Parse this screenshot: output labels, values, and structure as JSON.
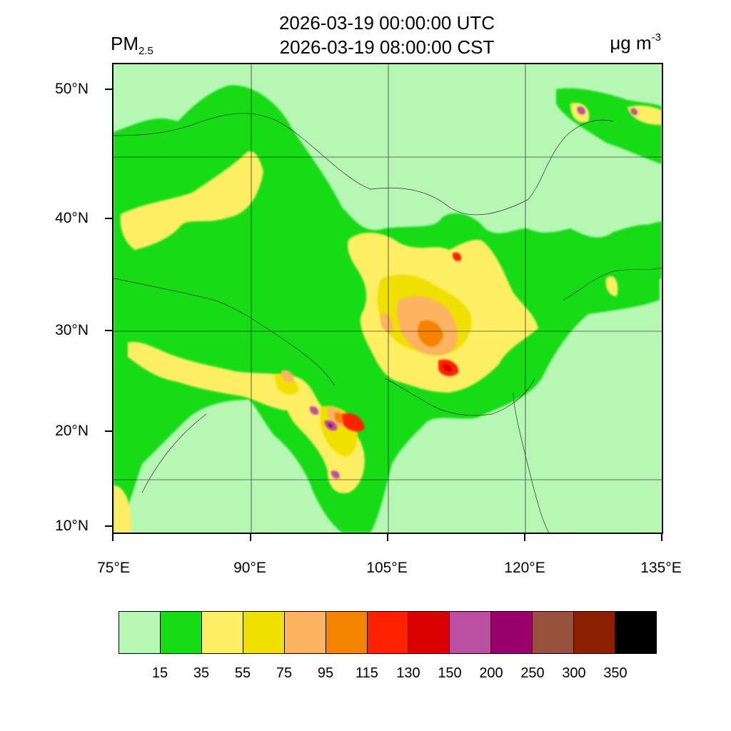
{
  "title": {
    "line1": "2026-03-19 00:00:00 UTC",
    "line2": "2026-03-19 08:00:00 CST"
  },
  "variable": {
    "base": "PM",
    "sub": "2.5"
  },
  "units": {
    "base": "μg m",
    "sup": "-3"
  },
  "axes": {
    "lat_labels": [
      "50°N",
      "40°N",
      "30°N",
      "20°N",
      "10°N"
    ],
    "lon_labels": [
      "75°E",
      "90°E",
      "105°E",
      "120°E",
      "135°E"
    ]
  },
  "legend": {
    "colors": [
      "#b6f7b4",
      "#16dc16",
      "#fdee63",
      "#f0e000",
      "#fcb462",
      "#f58300",
      "#ff2000",
      "#da0000",
      "#bb4fa2",
      "#9a006c",
      "#97523e",
      "#8b2000",
      "#000000"
    ],
    "labels": [
      "15",
      "35",
      "55",
      "75",
      "95",
      "115",
      "130",
      "150",
      "200",
      "250",
      "300",
      "350"
    ]
  },
  "colors": {
    "background": "#b6f7b4",
    "level_35": "#16dc16",
    "level_55": "#fdee63",
    "level_75": "#f0e000",
    "level_95": "#fcb462",
    "level_115": "#f58300",
    "level_130": "#ff2000",
    "level_150": "#da0000",
    "level_200": "#bb4fa2",
    "level_250": "#9a006c"
  }
}
